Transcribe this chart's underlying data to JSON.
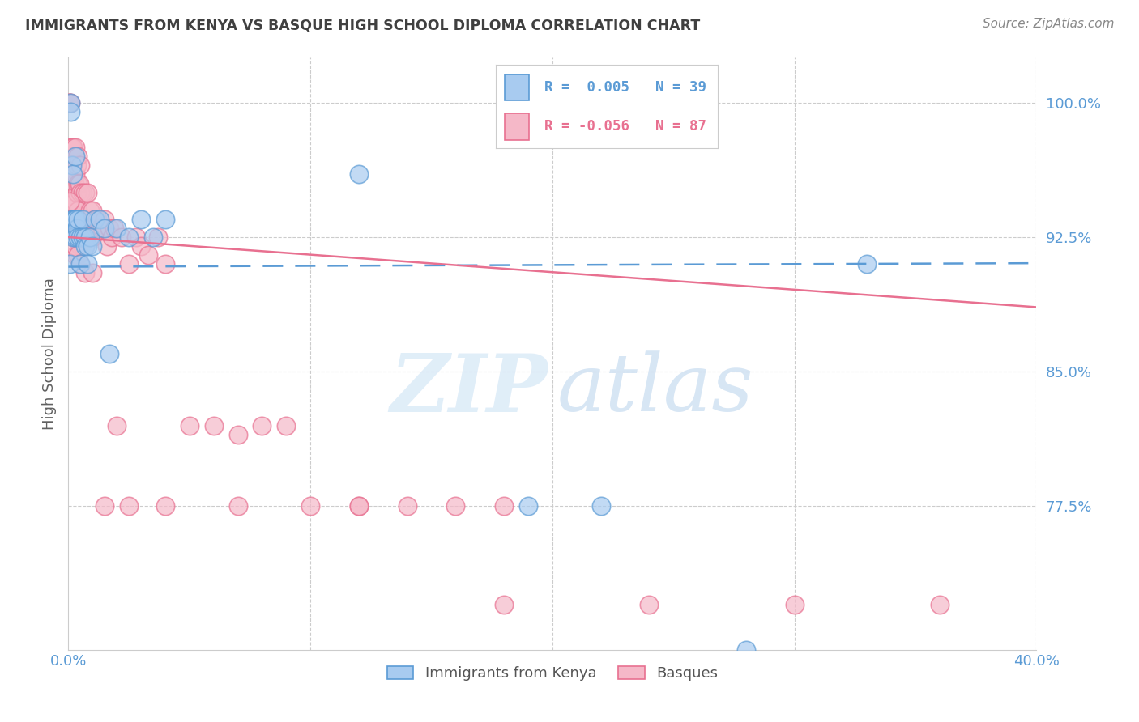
{
  "title": "IMMIGRANTS FROM KENYA VS BASQUE HIGH SCHOOL DIPLOMA CORRELATION CHART",
  "source": "Source: ZipAtlas.com",
  "ylabel": "High School Diploma",
  "xlim": [
    0.0,
    0.4
  ],
  "ylim": [
    0.695,
    1.025
  ],
  "yticks": [
    0.775,
    0.85,
    0.925,
    1.0
  ],
  "ytick_labels": [
    "77.5%",
    "85.0%",
    "92.5%",
    "100.0%"
  ],
  "legend_label_blue": "Immigrants from Kenya",
  "legend_label_pink": "Basques",
  "blue_color": "#A8CBF0",
  "pink_color": "#F5B8C8",
  "blue_edge_color": "#5B9BD5",
  "pink_edge_color": "#E87090",
  "blue_line_color": "#5B9BD5",
  "pink_line_color": "#E87090",
  "tick_label_color": "#5B9BD5",
  "title_color": "#404040",
  "grid_color": "#CCCCCC",
  "blue_r_text": "R =  0.005",
  "blue_n_text": "N = 39",
  "pink_r_text": "R = -0.056",
  "pink_n_text": "N = 87",
  "blue_scatter_x": [
    0.0005,
    0.001,
    0.001,
    0.0015,
    0.0015,
    0.002,
    0.002,
    0.002,
    0.0025,
    0.003,
    0.003,
    0.003,
    0.0035,
    0.004,
    0.004,
    0.005,
    0.005,
    0.006,
    0.006,
    0.007,
    0.007,
    0.008,
    0.008,
    0.009,
    0.01,
    0.011,
    0.013,
    0.015,
    0.017,
    0.02,
    0.025,
    0.03,
    0.035,
    0.04,
    0.12,
    0.19,
    0.22,
    0.28,
    0.33
  ],
  "blue_scatter_y": [
    0.91,
    1.0,
    0.995,
    0.965,
    0.935,
    0.96,
    0.935,
    0.925,
    0.935,
    0.97,
    0.935,
    0.925,
    0.93,
    0.935,
    0.925,
    0.925,
    0.91,
    0.935,
    0.925,
    0.925,
    0.92,
    0.92,
    0.91,
    0.925,
    0.92,
    0.935,
    0.935,
    0.93,
    0.86,
    0.93,
    0.925,
    0.935,
    0.925,
    0.935,
    0.96,
    0.775,
    0.775,
    0.695,
    0.91
  ],
  "pink_scatter_x": [
    0.0003,
    0.0005,
    0.0005,
    0.001,
    0.001,
    0.001,
    0.001,
    0.0015,
    0.0015,
    0.002,
    0.002,
    0.002,
    0.002,
    0.0025,
    0.0025,
    0.003,
    0.003,
    0.003,
    0.003,
    0.003,
    0.0035,
    0.0035,
    0.004,
    0.004,
    0.004,
    0.004,
    0.0045,
    0.005,
    0.005,
    0.005,
    0.005,
    0.006,
    0.006,
    0.006,
    0.007,
    0.007,
    0.007,
    0.008,
    0.008,
    0.009,
    0.009,
    0.01,
    0.01,
    0.011,
    0.012,
    0.013,
    0.014,
    0.015,
    0.016,
    0.017,
    0.018,
    0.019,
    0.02,
    0.022,
    0.025,
    0.028,
    0.03,
    0.033,
    0.037,
    0.04,
    0.05,
    0.06,
    0.07,
    0.08,
    0.09,
    0.1,
    0.12,
    0.14,
    0.16,
    0.18,
    0.0005,
    0.001,
    0.002,
    0.003,
    0.004,
    0.005,
    0.007,
    0.01,
    0.015,
    0.025,
    0.04,
    0.07,
    0.12,
    0.18,
    0.24,
    0.3,
    0.36
  ],
  "pink_scatter_y": [
    1.0,
    1.0,
    0.965,
    1.0,
    0.975,
    0.96,
    0.945,
    0.975,
    0.96,
    0.975,
    0.96,
    0.945,
    0.93,
    0.97,
    0.955,
    0.975,
    0.96,
    0.945,
    0.93,
    0.915,
    0.965,
    0.95,
    0.97,
    0.955,
    0.94,
    0.925,
    0.955,
    0.965,
    0.95,
    0.935,
    0.92,
    0.95,
    0.935,
    0.92,
    0.95,
    0.935,
    0.92,
    0.95,
    0.935,
    0.94,
    0.925,
    0.94,
    0.925,
    0.935,
    0.935,
    0.93,
    0.93,
    0.935,
    0.92,
    0.93,
    0.925,
    0.93,
    0.82,
    0.925,
    0.91,
    0.925,
    0.92,
    0.915,
    0.925,
    0.91,
    0.82,
    0.82,
    0.815,
    0.82,
    0.82,
    0.775,
    0.775,
    0.775,
    0.775,
    0.775,
    0.945,
    0.935,
    0.925,
    0.92,
    0.915,
    0.91,
    0.905,
    0.905,
    0.775,
    0.775,
    0.775,
    0.775,
    0.775,
    0.72,
    0.72,
    0.72,
    0.72
  ],
  "blue_line_x0": 0.0,
  "blue_line_x1": 0.4,
  "blue_line_y0": 0.9085,
  "blue_line_y1": 0.9105,
  "pink_line_x0": 0.0,
  "pink_line_x1": 0.4,
  "pink_line_y0": 0.925,
  "pink_line_y1": 0.886
}
